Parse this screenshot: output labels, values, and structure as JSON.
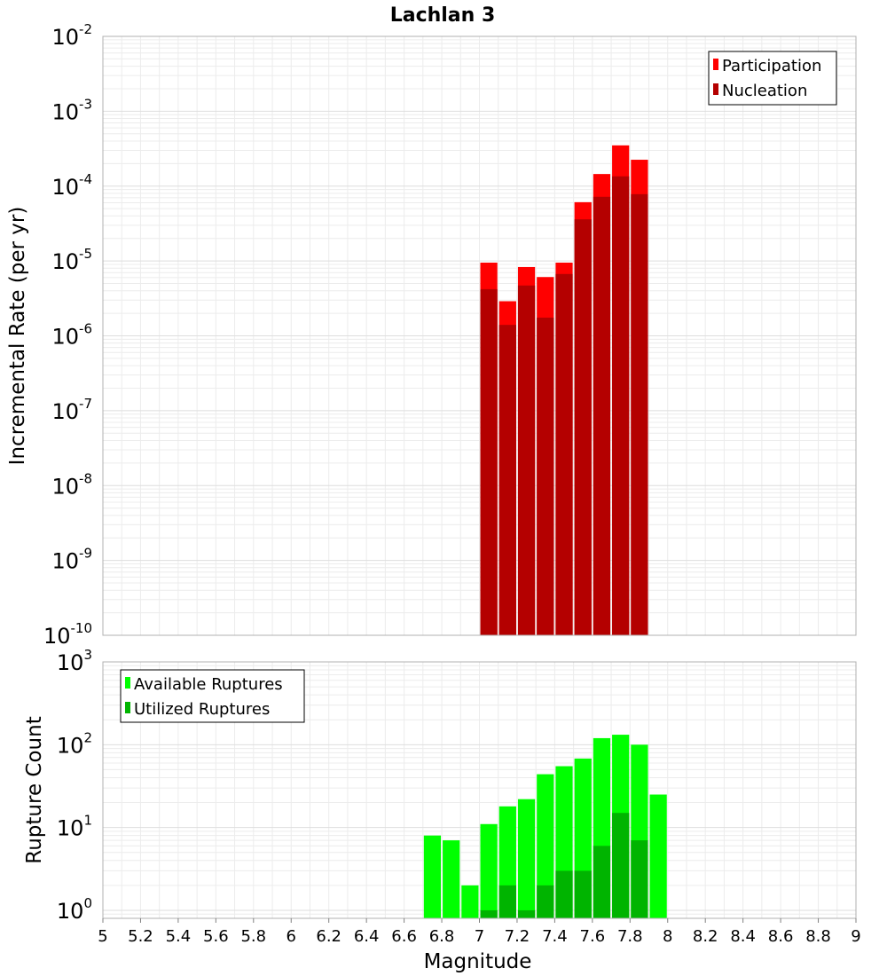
{
  "title": "Lachlan 3",
  "chart_data": [
    {
      "type": "bar",
      "ylabel": "Incremental Rate (per yr)",
      "yscale": "log",
      "ylim": [
        1e-10,
        0.01
      ],
      "xlim": [
        5,
        9
      ],
      "grid": true,
      "legend_position": "top-right",
      "ytick_labels": [
        {
          "base": "10",
          "exp": "-10"
        },
        {
          "base": "10",
          "exp": "-9"
        },
        {
          "base": "10",
          "exp": "-8"
        },
        {
          "base": "10",
          "exp": "-7"
        },
        {
          "base": "10",
          "exp": "-6"
        },
        {
          "base": "10",
          "exp": "-5"
        },
        {
          "base": "10",
          "exp": "-4"
        },
        {
          "base": "10",
          "exp": "-3"
        },
        {
          "base": "10",
          "exp": "-2"
        }
      ],
      "x": [
        7.05,
        7.15,
        7.25,
        7.35,
        7.45,
        7.55,
        7.65,
        7.75,
        7.85
      ],
      "series": [
        {
          "name": "Participation",
          "color": "#ff0000",
          "values": [
            9.5e-06,
            2.9e-06,
            8.3e-06,
            6.1e-06,
            9.5e-06,
            6.1e-05,
            0.000145,
            0.00035,
            0.000225
          ]
        },
        {
          "name": "Nucleation",
          "color": "#b40000",
          "values": [
            4.2e-06,
            1.4e-06,
            4.7e-06,
            1.75e-06,
            6.7e-06,
            3.6e-05,
            7.2e-05,
            0.000135,
            7.8e-05
          ]
        }
      ]
    },
    {
      "type": "bar",
      "xlabel": "Magnitude",
      "ylabel": "Rupture Count",
      "yscale": "log",
      "ylim": [
        0.8,
        1000
      ],
      "xlim": [
        5,
        9
      ],
      "grid": true,
      "legend_position": "top-left",
      "ytick_labels": [
        {
          "base": "10",
          "exp": "0"
        },
        {
          "base": "10",
          "exp": "1"
        },
        {
          "base": "10",
          "exp": "2"
        },
        {
          "base": "10",
          "exp": "3"
        }
      ],
      "xtick_labels": [
        "5",
        "5.2",
        "5.4",
        "5.6",
        "5.8",
        "6",
        "6.2",
        "6.4",
        "6.6",
        "6.8",
        "7",
        "7.2",
        "7.4",
        "7.6",
        "7.8",
        "8",
        "8.2",
        "8.4",
        "8.6",
        "8.8",
        "9"
      ],
      "x": [
        6.75,
        6.85,
        6.95,
        7.05,
        7.15,
        7.25,
        7.35,
        7.45,
        7.55,
        7.65,
        7.75,
        7.85,
        7.95
      ],
      "series": [
        {
          "name": "Available Ruptures",
          "color": "#00ff00",
          "values": [
            8,
            7,
            2,
            11,
            18,
            22,
            44,
            55,
            68,
            120,
            132,
            100,
            25
          ]
        },
        {
          "name": "Utilized Ruptures",
          "color": "#00b400",
          "values": [
            0,
            0,
            0,
            1,
            2,
            1,
            2,
            3,
            3,
            6,
            15,
            7,
            0
          ]
        }
      ]
    }
  ]
}
